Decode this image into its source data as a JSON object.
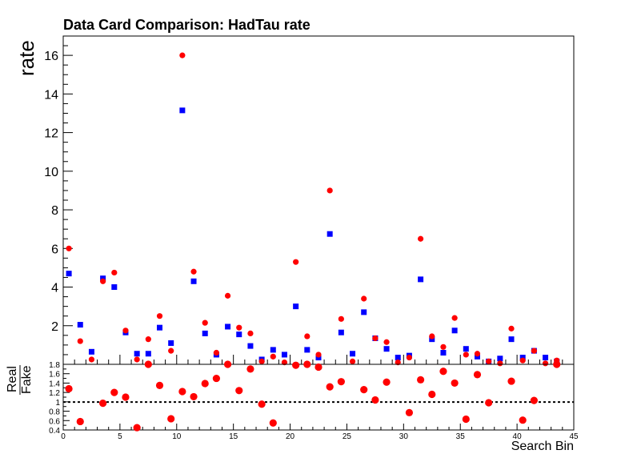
{
  "chart_data": [
    {
      "type": "scatter",
      "title": "Data Card Comparison: HadTau rate",
      "ylabel": "rate",
      "xlim": [
        0,
        45
      ],
      "ylim": [
        0,
        17
      ],
      "yticks": [
        2,
        4,
        6,
        8,
        10,
        12,
        14,
        16
      ],
      "series": [
        {
          "marker": "circle",
          "color": "#ff0000",
          "x": [
            0.5,
            1.5,
            2.5,
            3.5,
            4.5,
            5.5,
            6.5,
            7.5,
            8.5,
            9.5,
            10.5,
            11.5,
            12.5,
            13.5,
            14.5,
            15.5,
            16.5,
            17.5,
            18.5,
            19.5,
            20.5,
            21.5,
            22.5,
            23.5,
            24.5,
            25.5,
            26.5,
            27.5,
            28.5,
            29.5,
            30.5,
            31.5,
            32.5,
            33.5,
            34.5,
            35.5,
            36.5,
            37.5,
            38.5,
            39.5,
            40.5,
            41.5,
            42.5,
            43.5
          ],
          "values": [
            6.0,
            1.2,
            0.25,
            4.3,
            4.75,
            1.75,
            0.25,
            1.3,
            2.5,
            0.7,
            16.0,
            4.8,
            2.15,
            0.6,
            3.55,
            1.9,
            1.6,
            0.15,
            0.4,
            0.1,
            5.3,
            1.45,
            0.5,
            9.0,
            2.35,
            0.15,
            3.4,
            1.35,
            1.15,
            0.1,
            0.35,
            6.5,
            1.45,
            0.9,
            2.4,
            0.5,
            0.55,
            0.15,
            0.05,
            1.85,
            0.2,
            0.7,
            0.05,
            0.2
          ]
        },
        {
          "marker": "square",
          "color": "#0000ff",
          "x": [
            0.5,
            1.5,
            2.5,
            3.5,
            4.5,
            5.5,
            6.5,
            7.5,
            8.5,
            9.5,
            10.5,
            11.5,
            12.5,
            13.5,
            14.5,
            15.5,
            16.5,
            17.5,
            18.5,
            19.5,
            20.5,
            21.5,
            22.5,
            23.5,
            24.5,
            25.5,
            26.5,
            27.5,
            28.5,
            29.5,
            30.5,
            31.5,
            32.5,
            33.5,
            34.5,
            35.5,
            36.5,
            37.5,
            38.5,
            39.5,
            40.5,
            41.5,
            42.5,
            43.5
          ],
          "values": [
            4.7,
            2.05,
            0.65,
            4.45,
            4.0,
            1.65,
            0.55,
            0.55,
            1.9,
            1.1,
            13.15,
            4.3,
            1.6,
            0.5,
            1.95,
            1.55,
            0.95,
            0.25,
            0.75,
            0.5,
            3.0,
            0.75,
            0.35,
            6.75,
            1.65,
            0.55,
            2.7,
            1.35,
            0.8,
            0.35,
            0.45,
            4.4,
            1.3,
            0.6,
            1.75,
            0.8,
            0.4,
            0.15,
            0.3,
            1.3,
            0.35,
            0.7,
            0.35,
            0.15
          ]
        }
      ]
    },
    {
      "type": "scatter",
      "xlabel": "Search Bin",
      "ylabel": "Real / Fake",
      "ylabel_num": "Real",
      "ylabel_den": "Fake",
      "xlim": [
        0,
        45
      ],
      "ylim": [
        0.4,
        1.8
      ],
      "xticks": [
        0,
        5,
        10,
        15,
        20,
        25,
        30,
        35,
        40,
        45
      ],
      "yticks": [
        "0.4",
        "0.6",
        "0.8",
        "1",
        "1.2",
        "1.4",
        "1.6",
        "1.8"
      ],
      "reference_line": 1,
      "series": [
        {
          "marker": "circle",
          "color": "#ff0000",
          "x": [
            0.5,
            1.5,
            2.5,
            3.5,
            4.5,
            5.5,
            6.5,
            7.5,
            8.5,
            9.5,
            10.5,
            11.5,
            12.5,
            13.5,
            14.5,
            15.5,
            16.5,
            17.5,
            18.5,
            19.5,
            20.5,
            21.5,
            22.5,
            23.5,
            24.5,
            25.5,
            26.5,
            27.5,
            28.5,
            29.5,
            30.5,
            31.5,
            32.5,
            33.5,
            34.5,
            35.5,
            36.5,
            37.5,
            38.5,
            39.5,
            40.5,
            41.5,
            42.5,
            43.5
          ],
          "values": [
            1.28,
            0.58,
            null,
            0.97,
            1.2,
            1.1,
            0.45,
            1.8,
            1.35,
            0.64,
            1.22,
            1.11,
            1.39,
            1.5,
            1.8,
            1.24,
            1.7,
            0.95,
            0.55,
            null,
            1.78,
            1.8,
            1.74,
            1.32,
            1.43,
            null,
            1.26,
            1.04,
            1.42,
            null,
            0.77,
            1.47,
            1.16,
            1.65,
            1.4,
            0.63,
            1.58,
            0.98,
            null,
            1.44,
            0.61,
            1.03,
            null,
            1.8
          ]
        }
      ]
    }
  ]
}
